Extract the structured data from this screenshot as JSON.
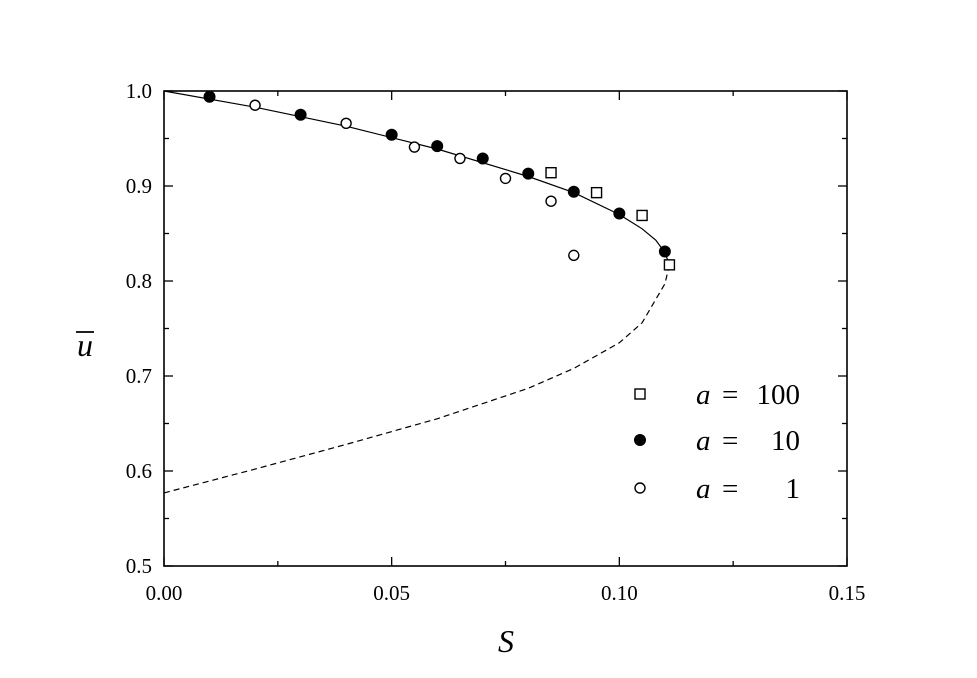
{
  "chart_data": {
    "type": "scatter",
    "title": "",
    "xlabel": "S",
    "ylabel": "u",
    "ylabel_overline": true,
    "xlim": [
      0.0,
      0.15
    ],
    "ylim": [
      0.5,
      1.0
    ],
    "x_ticks": [
      "0.00",
      "0.05",
      "0.10",
      "0.15"
    ],
    "y_ticks": [
      "0.5",
      "0.6",
      "0.7",
      "0.8",
      "0.9",
      "1.0"
    ],
    "grid": false,
    "legend_position": "lower-right",
    "curves": [
      {
        "style": "solid",
        "x": [
          0.0,
          0.02,
          0.04,
          0.06,
          0.08,
          0.09,
          0.1,
          0.105,
          0.108,
          0.11,
          0.111
        ],
        "y": [
          1.0,
          0.983,
          0.963,
          0.939,
          0.91,
          0.893,
          0.87,
          0.855,
          0.843,
          0.83,
          0.817
        ]
      },
      {
        "style": "dashed",
        "x": [
          0.111,
          0.11,
          0.105,
          0.1,
          0.09,
          0.08,
          0.06,
          0.04,
          0.02,
          0.0
        ],
        "y": [
          0.817,
          0.797,
          0.756,
          0.735,
          0.708,
          0.687,
          0.655,
          0.628,
          0.602,
          0.577
        ]
      }
    ],
    "series": [
      {
        "name_prefix": "a =",
        "name_value": "100",
        "marker": "open-square",
        "x": [
          0.085,
          0.095,
          0.105,
          0.111
        ],
        "y": [
          0.914,
          0.893,
          0.869,
          0.817
        ]
      },
      {
        "name_prefix": "a =",
        "name_value": "10",
        "marker": "filled-circle",
        "x": [
          0.01,
          0.03,
          0.05,
          0.06,
          0.07,
          0.08,
          0.09,
          0.1,
          0.11
        ],
        "y": [
          0.994,
          0.975,
          0.954,
          0.942,
          0.929,
          0.913,
          0.894,
          0.871,
          0.831
        ]
      },
      {
        "name_prefix": "a =",
        "name_value": "1",
        "marker": "open-circle",
        "x": [
          0.02,
          0.04,
          0.055,
          0.065,
          0.075,
          0.085,
          0.09
        ],
        "y": [
          0.985,
          0.966,
          0.941,
          0.929,
          0.908,
          0.884,
          0.827
        ]
      }
    ]
  }
}
